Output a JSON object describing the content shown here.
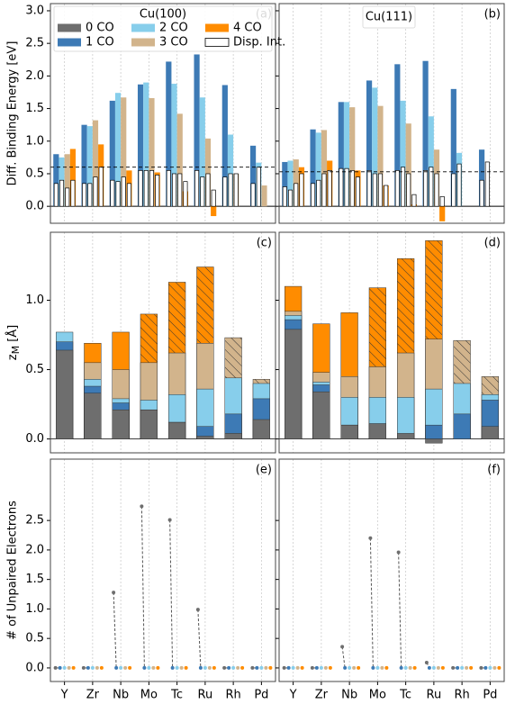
{
  "legend": {
    "title": "Cu(100)",
    "entries": [
      {
        "name": "0 CO",
        "color": "#6e6e6e"
      },
      {
        "name": "1 CO",
        "color": "#3d7ab5"
      },
      {
        "name": "2 CO",
        "color": "#87ceeb"
      },
      {
        "name": "3 CO",
        "color": "#d2b48c"
      },
      {
        "name": "4 CO",
        "color": "#ff8c00"
      },
      {
        "name": "Disp. Int.",
        "color": "#ffffff",
        "edgecolor": "#000000"
      }
    ]
  },
  "chart_data": [
    {
      "type": "grouped_bar",
      "letter": "(a)",
      "ylabel": "Diff. Binding Energy [eV]",
      "categories": [
        "Y",
        "Zr",
        "Nb",
        "Mo",
        "Tc",
        "Ru",
        "Rh",
        "Pd"
      ],
      "ylim": [
        -0.26,
        3.11
      ],
      "ref_line": 0.6,
      "yticks": [
        {
          "value": 0,
          "label": "0.0"
        },
        {
          "value": 0.5,
          "label": "0.5"
        },
        {
          "value": 1,
          "label": "1.0"
        },
        {
          "value": 1.5,
          "label": "1.5"
        },
        {
          "value": 2,
          "label": "2.0"
        },
        {
          "value": 2.5,
          "label": "2.5"
        },
        {
          "value": 3,
          "label": "3.0"
        }
      ],
      "series": [
        {
          "entry": 1,
          "values": [
            0.8,
            1.25,
            1.62,
            1.87,
            2.22,
            2.33,
            1.86,
            0.93
          ],
          "disp": [
            0.35,
            0.35,
            0.4,
            0.55,
            0.55,
            0.55,
            0.45,
            0.35
          ]
        },
        {
          "entry": 2,
          "values": [
            0.75,
            1.23,
            1.74,
            1.9,
            1.88,
            1.67,
            1.1,
            0.67
          ],
          "disp": [
            0.4,
            0.35,
            0.38,
            0.55,
            0.5,
            0.45,
            0.5,
            0.6
          ]
        },
        {
          "entry": 3,
          "values": [
            0.8,
            1.32,
            1.67,
            1.66,
            1.42,
            1.04,
            0.5,
            0.32
          ],
          "disp": [
            0.28,
            0.45,
            0.45,
            0.55,
            0.5,
            0.5,
            0.5,
            null
          ]
        },
        {
          "entry": 4,
          "values": [
            0.88,
            0.95,
            0.55,
            0.52,
            0.23,
            -0.15,
            null,
            null
          ],
          "disp": [
            0.4,
            0.6,
            0.35,
            0.48,
            0.38,
            0.25,
            null,
            null
          ]
        }
      ]
    },
    {
      "type": "grouped_bar",
      "letter": "(b)",
      "title": "Cu(111)",
      "categories": [
        "Y",
        "Zr",
        "Nb",
        "Mo",
        "Tc",
        "Ru",
        "Rh",
        "Pd"
      ],
      "ylim": [
        -0.26,
        3.11
      ],
      "ref_line": 0.53,
      "yticks": [
        0,
        0.5,
        1,
        1.5,
        2,
        2.5,
        3
      ],
      "series": [
        {
          "entry": 1,
          "values": [
            0.68,
            1.18,
            1.6,
            1.93,
            2.18,
            2.23,
            1.8,
            0.87
          ],
          "disp": [
            0.3,
            0.35,
            0.58,
            0.55,
            0.55,
            0.55,
            0.5,
            0.4
          ]
        },
        {
          "entry": 2,
          "values": [
            0.7,
            1.13,
            1.6,
            1.82,
            1.62,
            1.38,
            0.82,
            null
          ],
          "disp": [
            0.25,
            0.4,
            0.58,
            0.5,
            0.6,
            0.6,
            0.65,
            0.68
          ]
        },
        {
          "entry": 3,
          "values": [
            0.72,
            1.17,
            1.52,
            1.54,
            1.27,
            0.87,
            null,
            null
          ],
          "disp": [
            0.35,
            0.5,
            0.55,
            0.5,
            0.5,
            0.5,
            null,
            null
          ]
        },
        {
          "entry": 4,
          "values": [
            0.6,
            0.7,
            0.55,
            0.32,
            0.03,
            -0.23,
            null,
            null
          ],
          "disp": [
            0.5,
            0.55,
            0.45,
            0.32,
            0.18,
            0.15,
            null,
            null
          ]
        }
      ]
    },
    {
      "type": "overlap_bar",
      "letter": "(c)",
      "ylabel": {
        "main": "z",
        "sub": "M",
        "unit": " [Å]"
      },
      "categories": [
        "Y",
        "Zr",
        "Nb",
        "Mo",
        "Tc",
        "Ru",
        "Rh",
        "Pd"
      ],
      "ylim": [
        -0.1,
        1.49
      ],
      "yticks": [
        {
          "value": 0,
          "label": "0.0"
        },
        {
          "value": 0.5,
          "label": "0.5"
        },
        {
          "value": 1,
          "label": "1.0"
        }
      ],
      "series": [
        {
          "entry": 0,
          "values": [
            0.64,
            0.33,
            0.21,
            0.21,
            0.12,
            0.02,
            0.04,
            0.14
          ]
        },
        {
          "entry": 1,
          "values": [
            0.7,
            0.38,
            0.26,
            0.21,
            0.12,
            0.09,
            0.18,
            0.29
          ]
        },
        {
          "entry": 2,
          "values": [
            0.77,
            0.43,
            0.29,
            0.28,
            0.32,
            0.36,
            0.44,
            0.4
          ]
        },
        {
          "entry": 3,
          "values": [
            null,
            0.55,
            0.5,
            0.55,
            0.62,
            0.69,
            0.73,
            0.43
          ],
          "hatch": [
            false,
            false,
            false,
            false,
            false,
            false,
            true,
            true
          ]
        },
        {
          "entry": 4,
          "values": [
            null,
            0.69,
            0.77,
            0.9,
            1.13,
            1.24,
            null,
            null
          ],
          "hatch": [
            false,
            false,
            false,
            true,
            true,
            true,
            false,
            false
          ]
        }
      ]
    },
    {
      "type": "overlap_bar",
      "letter": "(d)",
      "categories": [
        "Y",
        "Zr",
        "Nb",
        "Mo",
        "Tc",
        "Ru",
        "Rh",
        "Pd"
      ],
      "ylim": [
        -0.1,
        1.49
      ],
      "yticks": [
        0,
        0.5,
        1
      ],
      "series": [
        {
          "entry": 0,
          "values": [
            0.79,
            0.34,
            0.1,
            0.11,
            0.04,
            -0.03,
            null,
            0.09
          ]
        },
        {
          "entry": 1,
          "values": [
            0.86,
            0.39,
            0.1,
            0.11,
            0.03,
            0.1,
            0.18,
            0.28
          ]
        },
        {
          "entry": 2,
          "values": [
            0.89,
            0.41,
            0.3,
            0.3,
            0.3,
            0.36,
            0.4,
            0.32
          ]
        },
        {
          "entry": 3,
          "values": [
            0.92,
            0.48,
            0.45,
            0.52,
            0.62,
            0.72,
            0.71,
            0.45
          ],
          "hatch": [
            false,
            false,
            false,
            false,
            false,
            false,
            true,
            true
          ]
        },
        {
          "entry": 4,
          "values": [
            1.1,
            0.83,
            0.91,
            1.09,
            1.3,
            1.43,
            null,
            null
          ],
          "hatch": [
            false,
            false,
            false,
            true,
            true,
            true,
            false,
            false
          ]
        }
      ]
    },
    {
      "type": "dots",
      "letter": "(e)",
      "ylabel": "# of Unpaired Electrons",
      "categories": [
        "Y",
        "Zr",
        "Nb",
        "Mo",
        "Tc",
        "Ru",
        "Rh",
        "Pd"
      ],
      "ylim": [
        -0.23,
        3.54
      ],
      "yticks": [
        {
          "value": 0,
          "label": "0.0"
        },
        {
          "value": 0.5,
          "label": "0.5"
        },
        {
          "value": 1,
          "label": "1.0"
        },
        {
          "value": 1.5,
          "label": "1.5"
        },
        {
          "value": 2,
          "label": "2.0"
        },
        {
          "value": 2.5,
          "label": "2.5"
        }
      ],
      "series": [
        {
          "entry": 0,
          "values": [
            0,
            0,
            1.28,
            2.74,
            2.51,
            0.99,
            0,
            0
          ]
        },
        {
          "entry": 1,
          "values": [
            0,
            0,
            0,
            0,
            0,
            0,
            0,
            0
          ]
        },
        {
          "entry": 2,
          "values": [
            0,
            0,
            0,
            0,
            0,
            0,
            0,
            0
          ]
        },
        {
          "entry": 3,
          "values": [
            0,
            0,
            0,
            0,
            0,
            0,
            0,
            0
          ]
        },
        {
          "entry": 4,
          "values": [
            0,
            0,
            0,
            0,
            0,
            0,
            0,
            0
          ]
        }
      ]
    },
    {
      "type": "dots",
      "letter": "(f)",
      "categories": [
        "Y",
        "Zr",
        "Nb",
        "Mo",
        "Tc",
        "Ru",
        "Rh",
        "Pd"
      ],
      "ylim": [
        -0.23,
        3.54
      ],
      "yticks": [
        0,
        0.5,
        1,
        1.5,
        2,
        2.5
      ],
      "series": [
        {
          "entry": 0,
          "values": [
            0,
            0,
            0.36,
            2.2,
            1.96,
            0.09,
            0,
            0
          ]
        },
        {
          "entry": 1,
          "values": [
            0,
            0,
            0,
            0,
            0,
            0,
            0,
            0
          ]
        },
        {
          "entry": 2,
          "values": [
            0,
            0,
            0,
            0,
            0,
            0,
            0,
            0
          ]
        },
        {
          "entry": 3,
          "values": [
            0,
            0,
            0,
            0,
            0,
            0,
            0,
            0
          ]
        },
        {
          "entry": 4,
          "values": [
            0,
            0,
            0,
            0,
            0,
            0,
            0,
            0
          ]
        }
      ]
    }
  ]
}
